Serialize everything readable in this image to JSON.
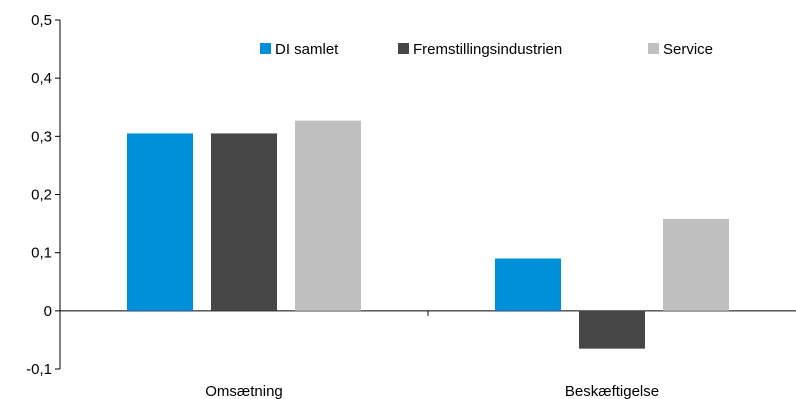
{
  "chart_data": {
    "type": "bar",
    "categories": [
      "Omsætning",
      "Beskæftigelse"
    ],
    "series": [
      {
        "name": "DI samlet",
        "color": "#0090d9",
        "values": [
          0.305,
          0.09
        ]
      },
      {
        "name": "Fremstillingsindustrien",
        "color": "#474747",
        "values": [
          0.305,
          -0.065
        ]
      },
      {
        "name": "Service",
        "color": "#c0c0c0",
        "values": [
          0.327,
          0.158
        ]
      }
    ],
    "ylim": [
      -0.1,
      0.5
    ],
    "yticks": [
      "0,5",
      "0,4",
      "0,3",
      "0,2",
      "0,1",
      "0",
      "-0,1"
    ],
    "ytick_values": [
      0.5,
      0.4,
      0.3,
      0.2,
      0.1,
      0,
      -0.1
    ],
    "legend_position": "top",
    "grid": false
  }
}
